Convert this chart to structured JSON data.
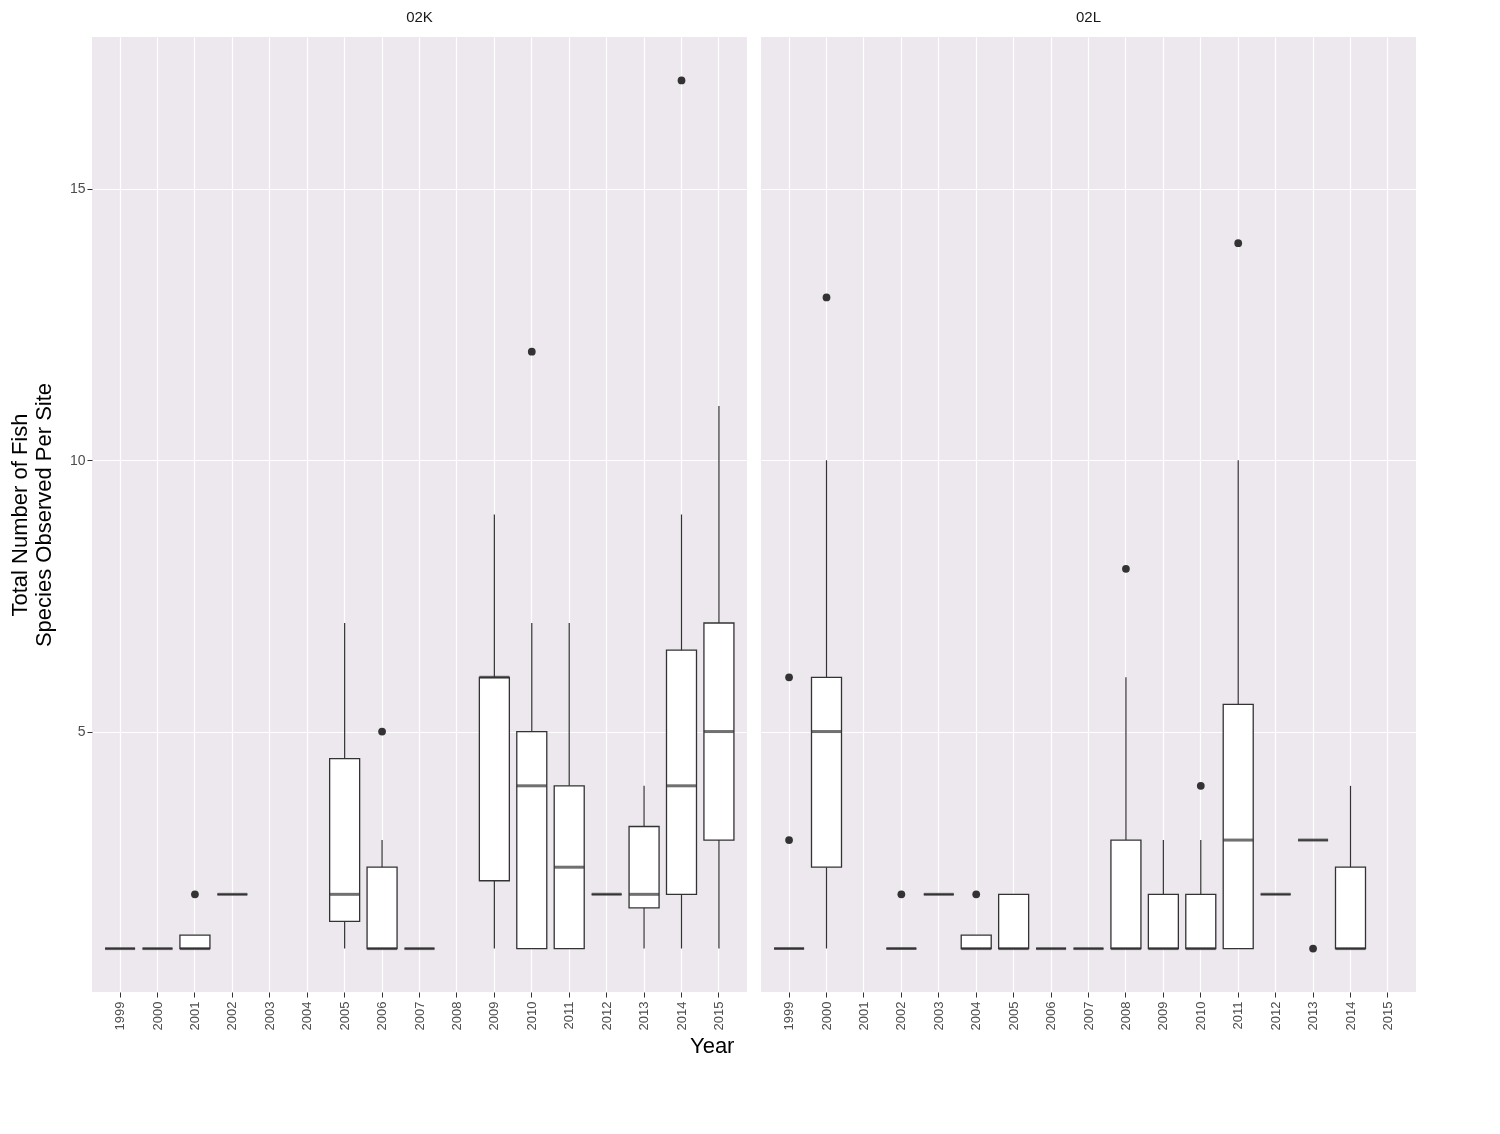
{
  "chart_data": [
    {
      "type": "box",
      "title": "02K",
      "xlabel": "Year",
      "ylabel": "Total Number of Fish\nSpecies Observed Per Site",
      "categories": [
        "1999",
        "2000",
        "2001",
        "2002",
        "2003",
        "2004",
        "2005",
        "2006",
        "2007",
        "2008",
        "2009",
        "2010",
        "2011",
        "2012",
        "2013",
        "2014",
        "2015"
      ],
      "boxes": [
        {
          "low": 1,
          "q1": 1,
          "median": 1,
          "q3": 1,
          "high": 1
        },
        {
          "low": 1,
          "q1": 1,
          "median": 1,
          "q3": 1,
          "high": 1
        },
        {
          "low": 1,
          "q1": 1,
          "median": 1,
          "q3": 1.25,
          "high": 1.25,
          "outliers": [
            2
          ]
        },
        {
          "low": 2,
          "q1": 2,
          "median": 2,
          "q3": 2,
          "high": 2
        },
        null,
        null,
        {
          "low": 1,
          "q1": 1.5,
          "median": 2,
          "q3": 4.5,
          "high": 7
        },
        {
          "low": 1,
          "q1": 1,
          "median": 1,
          "q3": 2.5,
          "high": 3,
          "outliers": [
            5
          ]
        },
        {
          "low": 1,
          "q1": 1,
          "median": 1,
          "q3": 1,
          "high": 1
        },
        null,
        {
          "low": 1,
          "q1": 2.25,
          "median": 6,
          "q3": 6,
          "high": 9
        },
        {
          "low": 1,
          "q1": 1,
          "median": 4,
          "q3": 5,
          "high": 7,
          "outliers": [
            12
          ]
        },
        {
          "low": 1,
          "q1": 1,
          "median": 2.5,
          "q3": 4,
          "high": 7
        },
        {
          "low": 2,
          "q1": 2,
          "median": 2,
          "q3": 2,
          "high": 2
        },
        {
          "low": 1,
          "q1": 1.75,
          "median": 2,
          "q3": 3.25,
          "high": 4
        },
        {
          "low": 1,
          "q1": 2,
          "median": 4,
          "q3": 6.5,
          "high": 9,
          "outliers": [
            17
          ]
        },
        {
          "low": 1,
          "q1": 3,
          "median": 5,
          "q3": 7,
          "high": 11
        }
      ],
      "ylim": [
        0.2,
        17.8
      ],
      "yticks": [
        5,
        10,
        15
      ],
      "grid": true
    },
    {
      "type": "box",
      "title": "02L",
      "tick_labels": "x",
      "categories": [
        "1999",
        "2000",
        "2001",
        "2002",
        "2003",
        "2004",
        "2005",
        "2006",
        "2007",
        "2008",
        "2009",
        "2010",
        "2011",
        "2012",
        "2013",
        "2014",
        "2015"
      ],
      "boxes": [
        {
          "low": 1,
          "q1": 1,
          "median": 1,
          "q3": 1,
          "high": 1,
          "outliers": [
            3,
            6
          ]
        },
        {
          "low": 1,
          "q1": 2.5,
          "median": 5,
          "q3": 6,
          "high": 10,
          "outliers": [
            13
          ]
        },
        null,
        {
          "low": 1,
          "q1": 1,
          "median": 1,
          "q3": 1,
          "high": 1,
          "outliers": [
            2
          ]
        },
        {
          "low": 2,
          "q1": 2,
          "median": 2,
          "q3": 2,
          "high": 2
        },
        {
          "low": 1,
          "q1": 1,
          "median": 1,
          "q3": 1.25,
          "high": 1.25,
          "outliers": [
            2
          ]
        },
        {
          "low": 1,
          "q1": 1,
          "median": 1,
          "q3": 2,
          "high": 2
        },
        {
          "low": 1,
          "q1": 1,
          "median": 1,
          "q3": 1,
          "high": 1
        },
        {
          "low": 1,
          "q1": 1,
          "median": 1,
          "q3": 1,
          "high": 1
        },
        {
          "low": 1,
          "q1": 1,
          "median": 1,
          "q3": 3,
          "high": 6,
          "outliers": [
            8
          ]
        },
        {
          "low": 1,
          "q1": 1,
          "median": 1,
          "q3": 2,
          "high": 3
        },
        {
          "low": 1,
          "q1": 1,
          "median": 1,
          "q3": 2,
          "high": 3,
          "outliers": [
            4
          ]
        },
        {
          "low": 1,
          "q1": 1,
          "median": 3,
          "q3": 5.5,
          "high": 10,
          "outliers": [
            14
          ]
        },
        {
          "low": 2,
          "q1": 2,
          "median": 2,
          "q3": 2,
          "high": 2
        },
        {
          "low": 3,
          "q1": 3,
          "median": 3,
          "q3": 3,
          "high": 3,
          "outliers": [
            1
          ]
        },
        {
          "low": 1,
          "q1": 1,
          "median": 1,
          "q3": 2.5,
          "high": 4
        },
        null
      ],
      "ylim": [
        0.2,
        17.8
      ],
      "yticks": [
        5,
        10,
        15
      ],
      "grid": true
    }
  ]
}
